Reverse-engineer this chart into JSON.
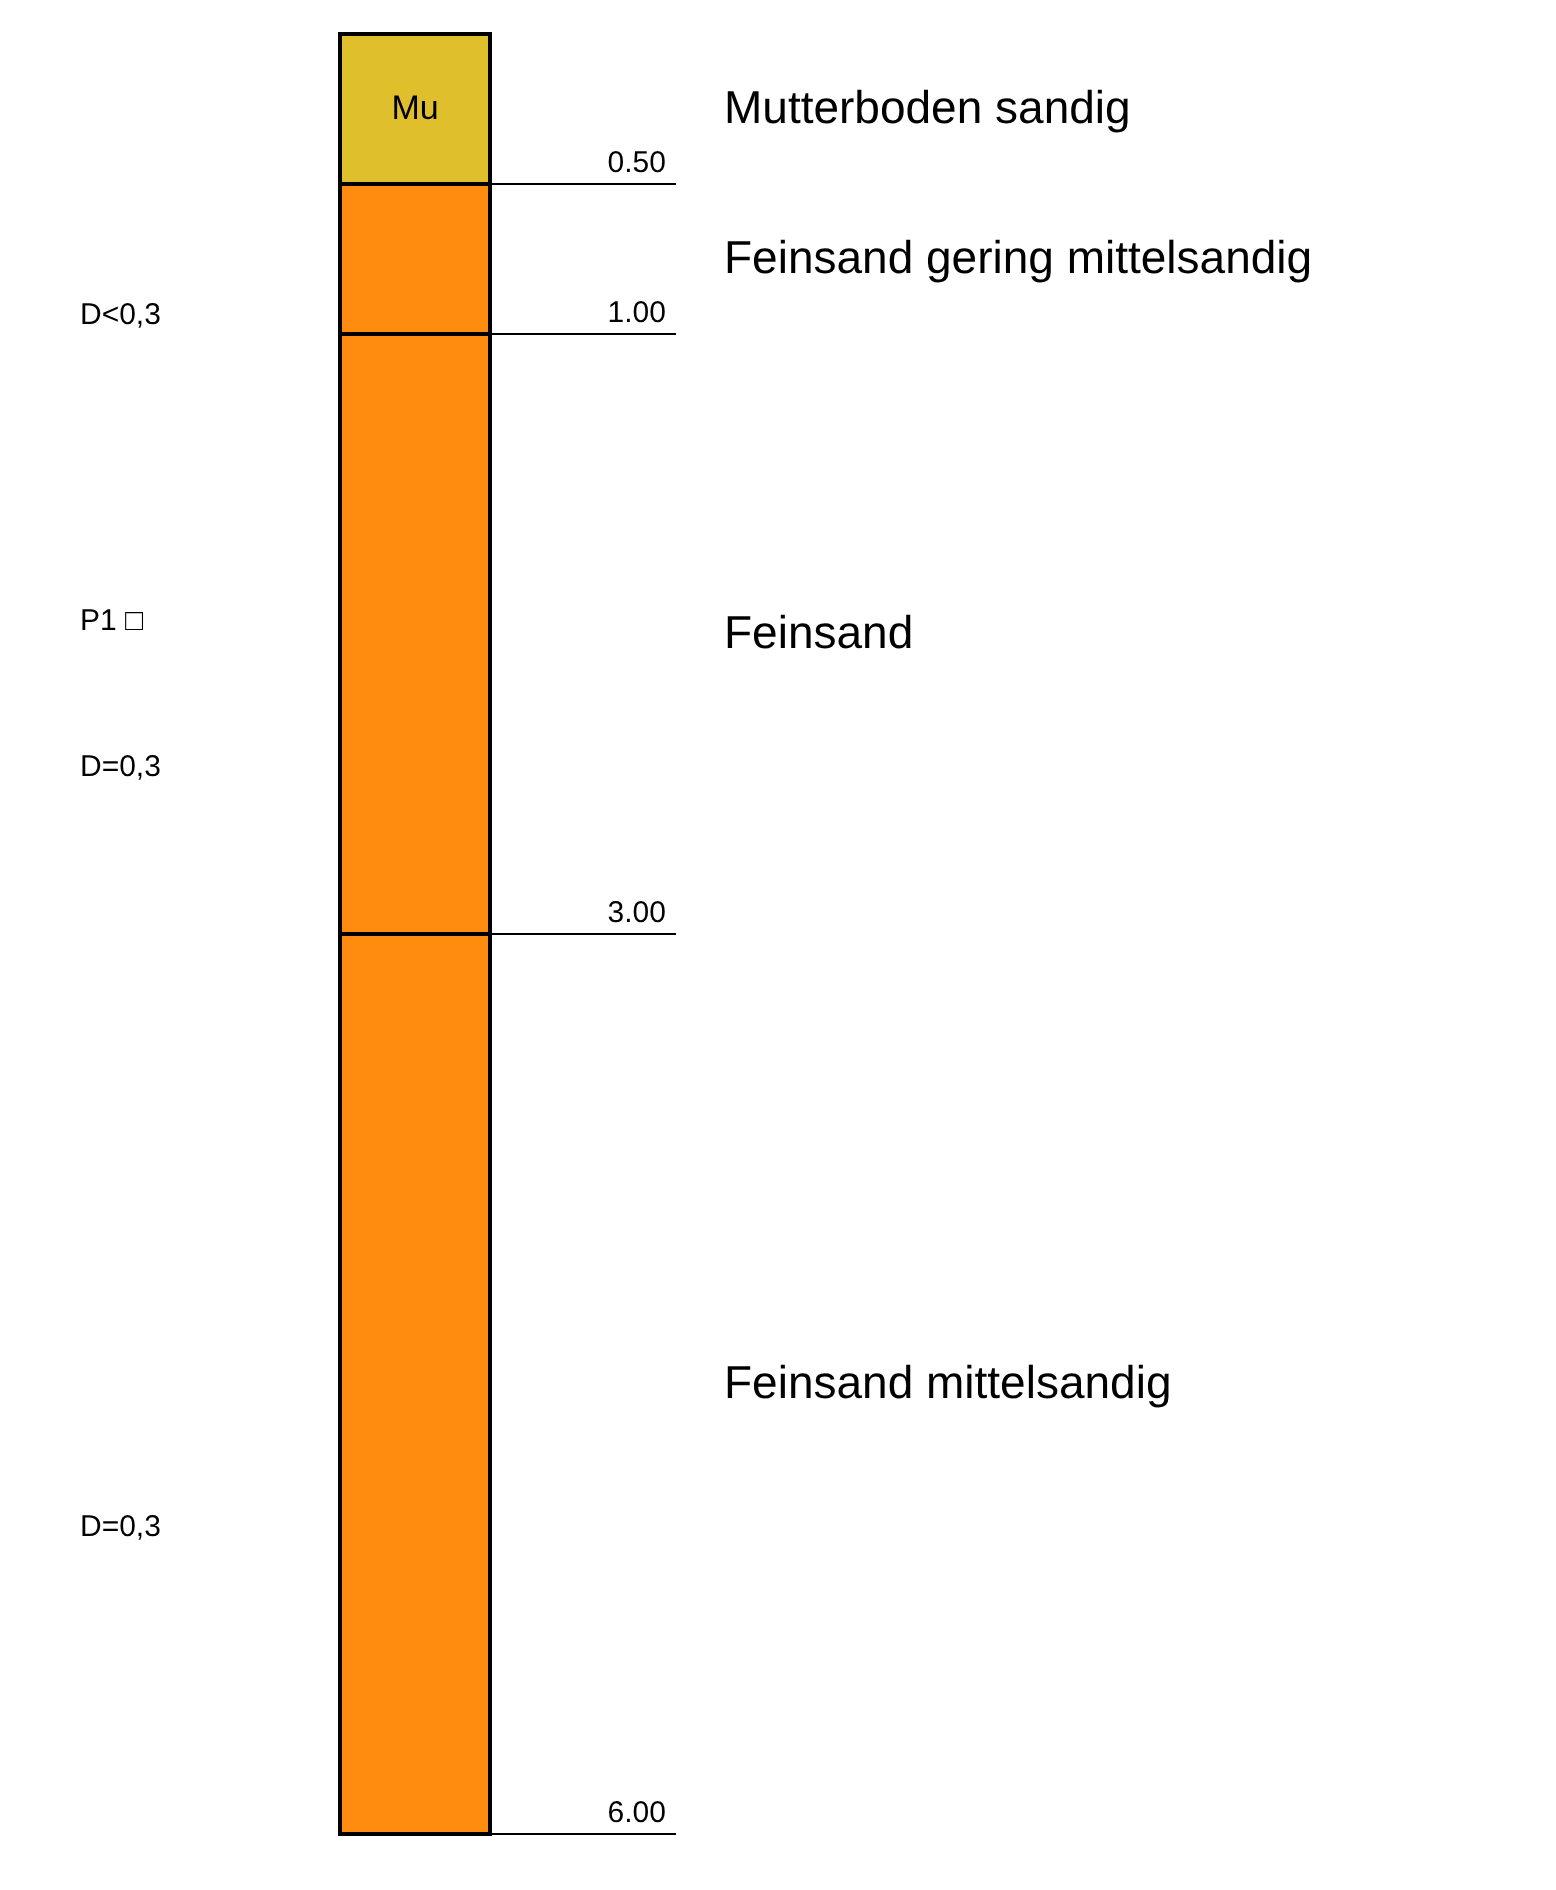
{
  "chart_data": {
    "type": "bar",
    "stacked": true,
    "categories": [
      null
    ],
    "ylim": [
      6,
      0
    ],
    "series": [
      {
        "name": "Mutterboden sandig",
        "color": "#e0bf2c",
        "values": [
          0.5
        ]
      },
      {
        "name": "Feinsand gering mittelsandig",
        "color": "#ff8c0f",
        "values": [
          0.5
        ]
      },
      {
        "name": "Feinsand",
        "color": "#ff8c0f",
        "values": [
          2
        ]
      },
      {
        "name": "Feinsand mittelsandig",
        "color": "#ff8c0f",
        "values": [
          3
        ]
      }
    ],
    "ref_lines": [
      {
        "axis": "y",
        "value": 0.5,
        "label": "0.50"
      },
      {
        "axis": "y",
        "value": 1,
        "label": "1.00"
      },
      {
        "axis": "y",
        "value": 3,
        "label": "3.00"
      },
      {
        "axis": "y",
        "value": 6,
        "label": "6.00"
      }
    ],
    "annotations": [
      "Mu",
      "D<0,3",
      "P1 □",
      "D=0,3",
      "D=0,3"
    ]
  }
}
